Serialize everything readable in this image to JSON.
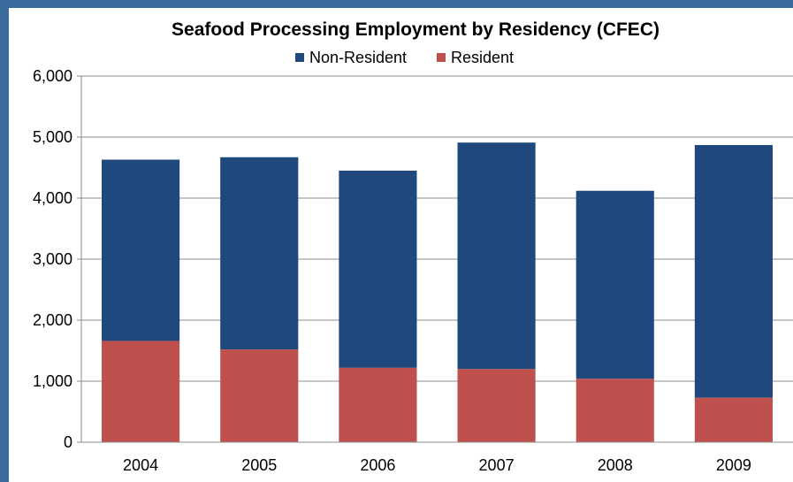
{
  "chart_data": {
    "type": "bar",
    "stacked": true,
    "title": "Seafood Processing Employment by Residency (CFEC)",
    "xlabel": "",
    "ylabel": "",
    "categories": [
      "2004",
      "2005",
      "2006",
      "2007",
      "2008",
      "2009"
    ],
    "series": [
      {
        "name": "Resident",
        "color": "#c0504d",
        "values": [
          1660,
          1520,
          1220,
          1200,
          1040,
          730
        ]
      },
      {
        "name": "Non-Resident",
        "color": "#1f497d",
        "values": [
          2970,
          3150,
          3230,
          3710,
          3080,
          4140
        ]
      }
    ],
    "legend_order": [
      "Non-Resident",
      "Resident"
    ],
    "legend_position": "top",
    "ylim": [
      0,
      6000
    ],
    "yticks": [
      0,
      1000,
      2000,
      3000,
      4000,
      5000,
      6000
    ],
    "ytick_labels": [
      "0",
      "1,000",
      "2,000",
      "3,000",
      "4,000",
      "5,000",
      "6,000"
    ],
    "grid": true
  }
}
